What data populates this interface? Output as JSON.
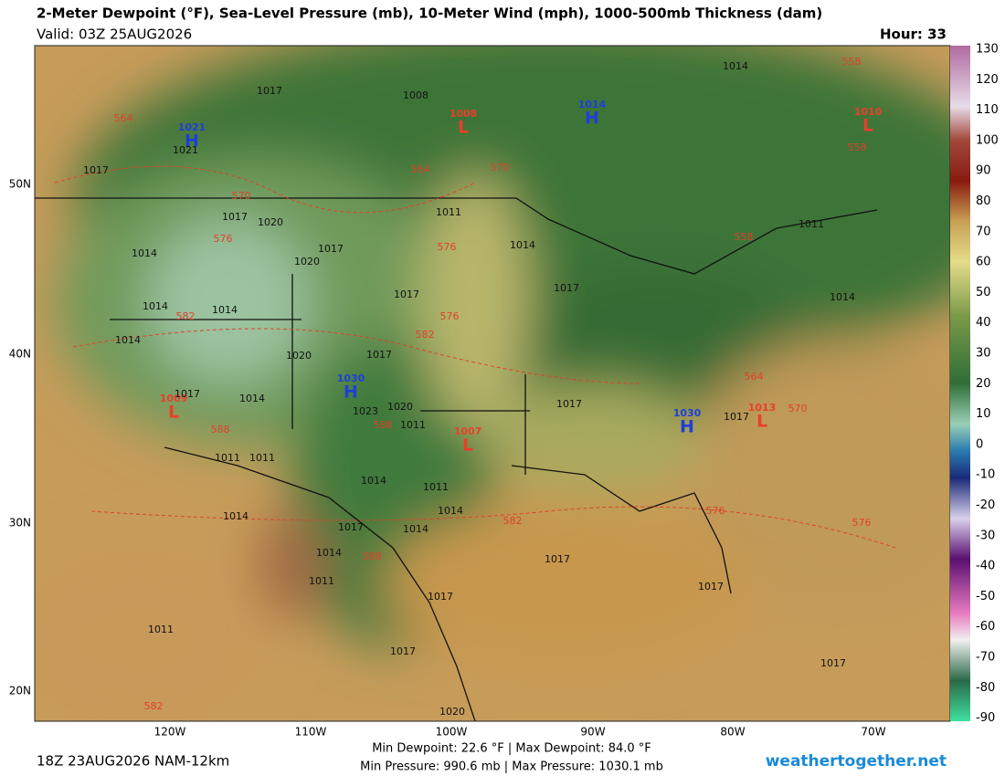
{
  "header": {
    "title": "2-Meter Dewpoint (°F), Sea-Level Pressure (mb), 10-Meter Wind (mph), 1000-500mb Thickness (dam)",
    "valid": "Valid: 03Z 25AUG2026",
    "hour": "Hour: 33"
  },
  "colorbar": {
    "labels": [
      "130",
      "120",
      "110",
      "100",
      "90",
      "80",
      "70",
      "60",
      "50",
      "40",
      "30",
      "20",
      "10",
      "0",
      "-10",
      "-20",
      "-30",
      "-40",
      "-50",
      "-60",
      "-70",
      "-80",
      "-90"
    ]
  },
  "axes": {
    "lat": [
      "50N",
      "40N",
      "30N",
      "20N"
    ],
    "lon": [
      "120W",
      "110W",
      "100W",
      "90W",
      "80W",
      "70W"
    ]
  },
  "pressure_centers": [
    {
      "type": "H",
      "value": "1021"
    },
    {
      "type": "L",
      "value": "1008"
    },
    {
      "type": "H",
      "value": "1014"
    },
    {
      "type": "L",
      "value": "1010"
    },
    {
      "type": "L",
      "value": "1009"
    },
    {
      "type": "H",
      "value": "1030"
    },
    {
      "type": "L",
      "value": "1007"
    },
    {
      "type": "H",
      "value": "1030"
    },
    {
      "type": "L",
      "value": "1013"
    }
  ],
  "isobar_labels": [
    "1017",
    "1008",
    "1014",
    "1021",
    "1017",
    "1017",
    "1020",
    "1014",
    "1017",
    "1020",
    "1011",
    "1014",
    "1011",
    "1014",
    "1014",
    "1017",
    "1017",
    "1014",
    "1014",
    "1020",
    "1017",
    "1017",
    "1014",
    "1020",
    "1023",
    "1011",
    "1017",
    "1017",
    "1011",
    "1011",
    "1014",
    "1011",
    "1014",
    "1014",
    "1017",
    "1014",
    "1014",
    "1011",
    "1017",
    "1017",
    "1017",
    "1011",
    "1017",
    "1017",
    "1020"
  ],
  "thickness_labels": [
    "564",
    "558",
    "564",
    "570",
    "570",
    "576",
    "576",
    "558",
    "558",
    "582",
    "576",
    "582",
    "564",
    "570",
    "588",
    "588",
    "582",
    "576",
    "576",
    "588",
    "582"
  ],
  "footer": {
    "run": "18Z 23AUG2026 NAM-12km",
    "dewpoint": "Min Dewpoint:  22.6 °F | Max Dewpoint:  84.0 °F",
    "pressure": "Min Pressure: 990.6 mb | Max Pressure: 1030.1 mb",
    "site": "weathertogether.net"
  }
}
